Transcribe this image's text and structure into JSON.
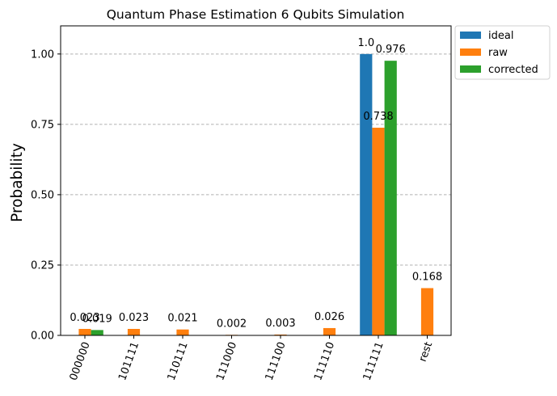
{
  "chart_data": {
    "type": "bar",
    "title": "Quantum Phase Estimation 6 Qubits Simulation",
    "xlabel": "",
    "ylabel": "Probability",
    "categories": [
      "000000",
      "101111",
      "110111",
      "111000",
      "111100",
      "111110",
      "111111",
      "rest"
    ],
    "ylim": [
      0,
      1.1
    ],
    "yticks": [
      "0.00",
      "0.25",
      "0.50",
      "0.75",
      "1.00"
    ],
    "ytick_values": [
      0,
      0.25,
      0.5,
      0.75,
      1.0
    ],
    "grid": "y dashed",
    "legend_position": "outside top-right",
    "series": [
      {
        "name": "ideal",
        "color": "#1f77b4",
        "values": [
          0,
          0,
          0,
          0,
          0,
          0,
          1.0,
          0
        ],
        "labels": [
          "",
          "",
          "",
          "",
          "",
          "",
          "1.0",
          ""
        ]
      },
      {
        "name": "raw",
        "color": "#ff7f0e",
        "values": [
          0.023,
          0.023,
          0.021,
          0.002,
          0.003,
          0.026,
          0.738,
          0.168
        ],
        "labels": [
          "0.023",
          "0.023",
          "0.021",
          "0.002",
          "0.003",
          "0.026",
          "0.738",
          "0.168"
        ]
      },
      {
        "name": "corrected",
        "color": "#2ca02c",
        "values": [
          0.019,
          0,
          0,
          0,
          0,
          0,
          0.976,
          0
        ],
        "labels": [
          "0.019",
          "",
          "",
          "",
          "",
          "",
          "0.976",
          ""
        ]
      }
    ]
  }
}
